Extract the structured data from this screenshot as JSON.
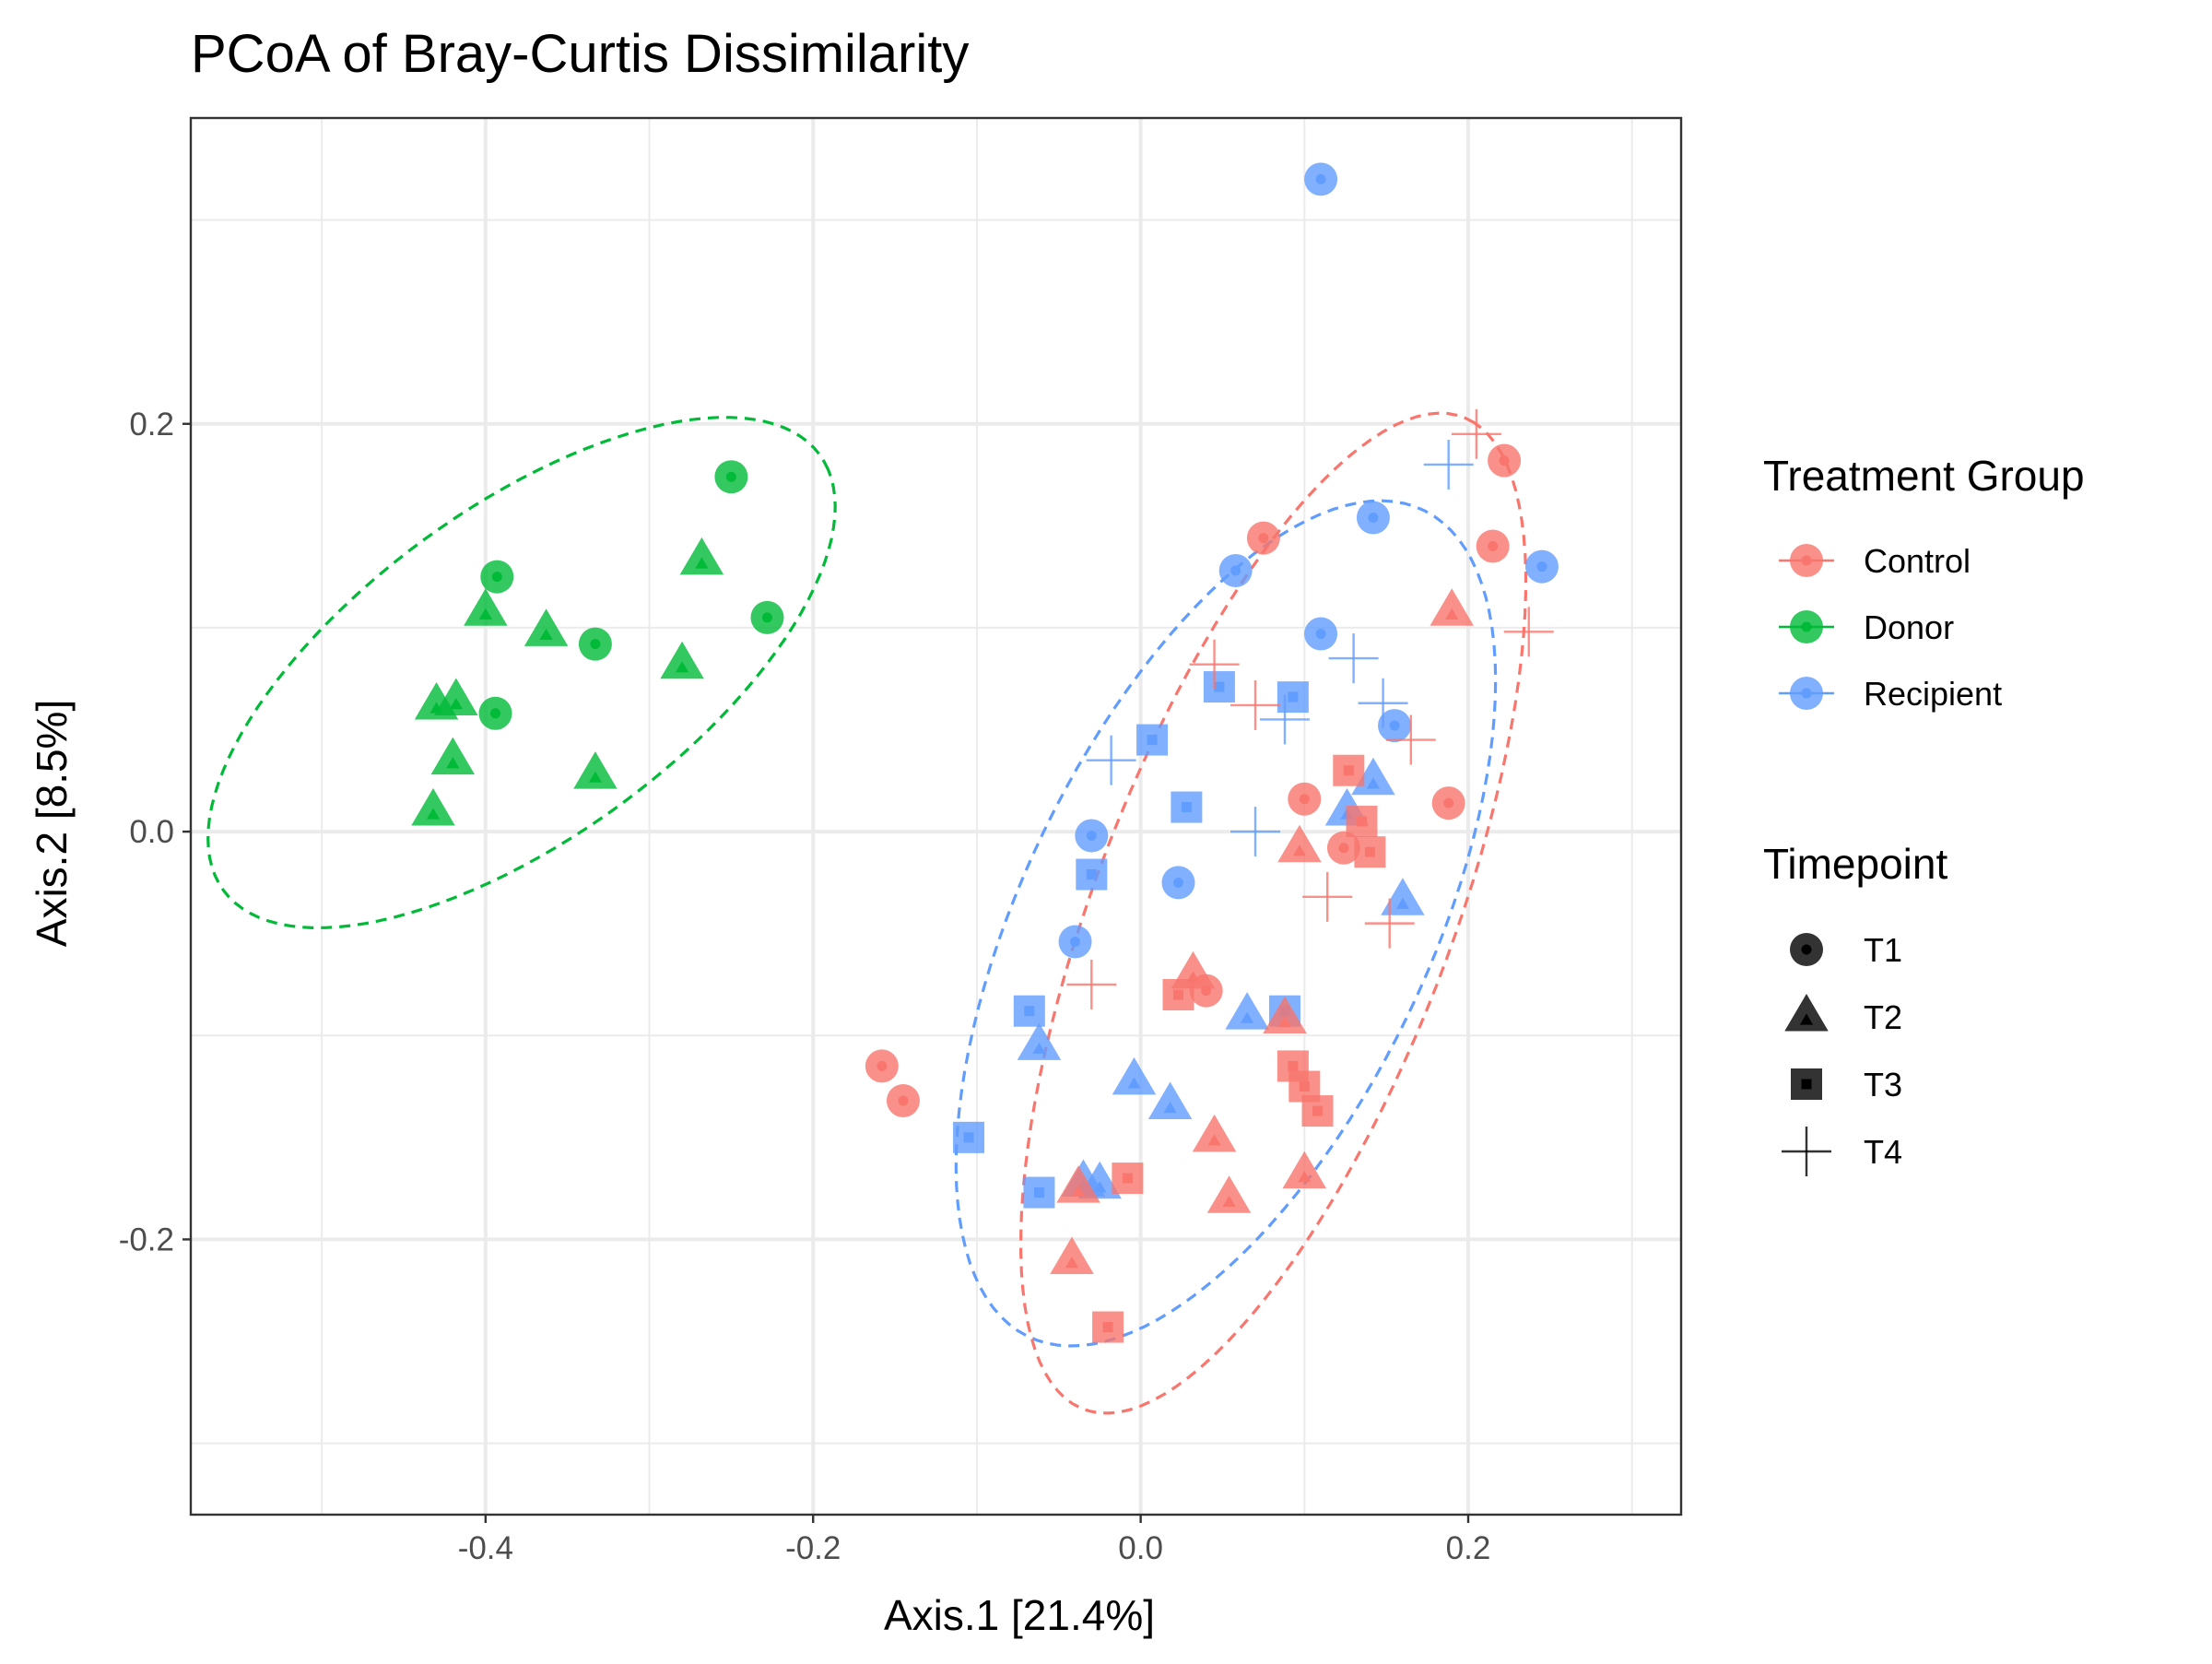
{
  "chart_data": {
    "type": "scatter",
    "title": "PCoA of Bray-Curtis Dissimilarity",
    "xlabel": "Axis.1   [21.4%]",
    "ylabel": "Axis.2   [8.5%]",
    "xlim": [
      -0.58,
      0.33
    ],
    "ylim": [
      -0.335,
      0.35
    ],
    "x_ticks": [
      -0.4,
      -0.2,
      0.0,
      0.2
    ],
    "x_tick_labels": [
      "-0.4",
      "-0.2",
      "0.0",
      "0.2"
    ],
    "y_ticks": [
      -0.2,
      0.0,
      0.2
    ],
    "y_tick_labels": [
      "-0.2",
      "0.0",
      "0.2"
    ],
    "grid": true,
    "legend_position": "right",
    "colors": {
      "Control": "#F8766D",
      "Donor": "#00BA38",
      "Recipient": "#619CFF"
    },
    "legend_color": {
      "title": "Treatment Group",
      "items": [
        {
          "label": "Control",
          "group": "Control"
        },
        {
          "label": "Donor",
          "group": "Donor"
        },
        {
          "label": "Recipient",
          "group": "Recipient"
        }
      ]
    },
    "legend_shape": {
      "title": "Timepoint",
      "items": [
        {
          "label": "T1",
          "shape": "circle"
        },
        {
          "label": "T2",
          "shape": "triangle"
        },
        {
          "label": "T3",
          "shape": "square"
        },
        {
          "label": "T4",
          "shape": "cross"
        }
      ]
    },
    "ellipses": [
      {
        "group": "Donor",
        "center": [
          -0.378,
          0.078
        ],
        "rx": 0.212,
        "ry": 0.086,
        "angle": 28
      },
      {
        "group": "Recipient",
        "center": [
          0.052,
          -0.045
        ],
        "rx": 0.237,
        "ry": 0.118,
        "angle": 56
      },
      {
        "group": "Control",
        "center": [
          0.081,
          -0.04
        ],
        "rx": 0.27,
        "ry": 0.105,
        "angle": 63
      }
    ],
    "points": [
      {
        "group": "Donor",
        "time": "T1",
        "x": -0.25,
        "y": 0.174
      },
      {
        "group": "Donor",
        "time": "T1",
        "x": -0.393,
        "y": 0.125
      },
      {
        "group": "Donor",
        "time": "T1",
        "x": -0.228,
        "y": 0.105
      },
      {
        "group": "Donor",
        "time": "T1",
        "x": -0.333,
        "y": 0.092
      },
      {
        "group": "Donor",
        "time": "T1",
        "x": -0.394,
        "y": 0.058
      },
      {
        "group": "Donor",
        "time": "T2",
        "x": -0.268,
        "y": 0.133
      },
      {
        "group": "Donor",
        "time": "T2",
        "x": -0.4,
        "y": 0.108
      },
      {
        "group": "Donor",
        "time": "T2",
        "x": -0.363,
        "y": 0.098
      },
      {
        "group": "Donor",
        "time": "T2",
        "x": -0.28,
        "y": 0.082
      },
      {
        "group": "Donor",
        "time": "T2",
        "x": -0.43,
        "y": 0.062
      },
      {
        "group": "Donor",
        "time": "T2",
        "x": -0.418,
        "y": 0.064
      },
      {
        "group": "Donor",
        "time": "T2",
        "x": -0.42,
        "y": 0.035
      },
      {
        "group": "Donor",
        "time": "T2",
        "x": -0.333,
        "y": 0.028
      },
      {
        "group": "Donor",
        "time": "T2",
        "x": -0.432,
        "y": 0.01
      },
      {
        "group": "Recipient",
        "time": "T1",
        "x": 0.11,
        "y": 0.32
      },
      {
        "group": "Recipient",
        "time": "T1",
        "x": 0.142,
        "y": 0.154
      },
      {
        "group": "Recipient",
        "time": "T1",
        "x": 0.245,
        "y": 0.13
      },
      {
        "group": "Recipient",
        "time": "T1",
        "x": 0.058,
        "y": 0.128
      },
      {
        "group": "Recipient",
        "time": "T1",
        "x": 0.11,
        "y": 0.097
      },
      {
        "group": "Recipient",
        "time": "T1",
        "x": 0.155,
        "y": 0.052
      },
      {
        "group": "Recipient",
        "time": "T1",
        "x": -0.03,
        "y": -0.002
      },
      {
        "group": "Recipient",
        "time": "T1",
        "x": 0.023,
        "y": -0.025
      },
      {
        "group": "Recipient",
        "time": "T1",
        "x": -0.04,
        "y": -0.054
      },
      {
        "group": "Recipient",
        "time": "T2",
        "x": 0.142,
        "y": 0.025
      },
      {
        "group": "Recipient",
        "time": "T2",
        "x": 0.126,
        "y": 0.01
      },
      {
        "group": "Recipient",
        "time": "T2",
        "x": 0.16,
        "y": -0.034
      },
      {
        "group": "Recipient",
        "time": "T2",
        "x": 0.065,
        "y": -0.09
      },
      {
        "group": "Recipient",
        "time": "T2",
        "x": -0.062,
        "y": -0.105
      },
      {
        "group": "Recipient",
        "time": "T2",
        "x": -0.004,
        "y": -0.122
      },
      {
        "group": "Recipient",
        "time": "T2",
        "x": 0.018,
        "y": -0.134
      },
      {
        "group": "Recipient",
        "time": "T2",
        "x": -0.035,
        "y": -0.172
      },
      {
        "group": "Recipient",
        "time": "T2",
        "x": -0.025,
        "y": -0.173
      },
      {
        "group": "Recipient",
        "time": "T3",
        "x": 0.048,
        "y": 0.071
      },
      {
        "group": "Recipient",
        "time": "T3",
        "x": 0.093,
        "y": 0.066
      },
      {
        "group": "Recipient",
        "time": "T3",
        "x": 0.007,
        "y": 0.045
      },
      {
        "group": "Recipient",
        "time": "T3",
        "x": 0.028,
        "y": 0.012
      },
      {
        "group": "Recipient",
        "time": "T3",
        "x": -0.03,
        "y": -0.021
      },
      {
        "group": "Recipient",
        "time": "T3",
        "x": -0.068,
        "y": -0.088
      },
      {
        "group": "Recipient",
        "time": "T3",
        "x": 0.088,
        "y": -0.088
      },
      {
        "group": "Recipient",
        "time": "T3",
        "x": -0.105,
        "y": -0.15
      },
      {
        "group": "Recipient",
        "time": "T3",
        "x": -0.062,
        "y": -0.177
      },
      {
        "group": "Recipient",
        "time": "T4",
        "x": 0.188,
        "y": 0.18
      },
      {
        "group": "Recipient",
        "time": "T4",
        "x": 0.13,
        "y": 0.085
      },
      {
        "group": "Recipient",
        "time": "T4",
        "x": 0.148,
        "y": 0.063
      },
      {
        "group": "Recipient",
        "time": "T4",
        "x": 0.088,
        "y": 0.055
      },
      {
        "group": "Recipient",
        "time": "T4",
        "x": -0.018,
        "y": 0.035
      },
      {
        "group": "Recipient",
        "time": "T4",
        "x": 0.07,
        "y": 0.0
      },
      {
        "group": "Control",
        "time": "T1",
        "x": 0.222,
        "y": 0.182
      },
      {
        "group": "Control",
        "time": "T1",
        "x": 0.215,
        "y": 0.14
      },
      {
        "group": "Control",
        "time": "T1",
        "x": 0.075,
        "y": 0.144
      },
      {
        "group": "Control",
        "time": "T1",
        "x": 0.1,
        "y": 0.016
      },
      {
        "group": "Control",
        "time": "T1",
        "x": 0.188,
        "y": 0.014
      },
      {
        "group": "Control",
        "time": "T1",
        "x": 0.124,
        "y": -0.008
      },
      {
        "group": "Control",
        "time": "T1",
        "x": 0.04,
        "y": -0.078
      },
      {
        "group": "Control",
        "time": "T1",
        "x": -0.158,
        "y": -0.115
      },
      {
        "group": "Control",
        "time": "T1",
        "x": -0.145,
        "y": -0.132
      },
      {
        "group": "Control",
        "time": "T2",
        "x": 0.19,
        "y": 0.108
      },
      {
        "group": "Control",
        "time": "T2",
        "x": 0.097,
        "y": -0.008
      },
      {
        "group": "Control",
        "time": "T2",
        "x": 0.032,
        "y": -0.07
      },
      {
        "group": "Control",
        "time": "T2",
        "x": 0.088,
        "y": -0.092
      },
      {
        "group": "Control",
        "time": "T2",
        "x": 0.045,
        "y": -0.15
      },
      {
        "group": "Control",
        "time": "T2",
        "x": 0.1,
        "y": -0.168
      },
      {
        "group": "Control",
        "time": "T2",
        "x": 0.054,
        "y": -0.18
      },
      {
        "group": "Control",
        "time": "T2",
        "x": -0.038,
        "y": -0.175
      },
      {
        "group": "Control",
        "time": "T2",
        "x": -0.042,
        "y": -0.21
      },
      {
        "group": "Control",
        "time": "T3",
        "x": 0.127,
        "y": 0.03
      },
      {
        "group": "Control",
        "time": "T3",
        "x": 0.135,
        "y": 0.005
      },
      {
        "group": "Control",
        "time": "T3",
        "x": 0.14,
        "y": -0.01
      },
      {
        "group": "Control",
        "time": "T3",
        "x": 0.023,
        "y": -0.08
      },
      {
        "group": "Control",
        "time": "T3",
        "x": 0.093,
        "y": -0.115
      },
      {
        "group": "Control",
        "time": "T3",
        "x": 0.1,
        "y": -0.125
      },
      {
        "group": "Control",
        "time": "T3",
        "x": 0.108,
        "y": -0.137
      },
      {
        "group": "Control",
        "time": "T3",
        "x": -0.008,
        "y": -0.17
      },
      {
        "group": "Control",
        "time": "T3",
        "x": -0.02,
        "y": -0.243
      },
      {
        "group": "Control",
        "time": "T4",
        "x": 0.205,
        "y": 0.195
      },
      {
        "group": "Control",
        "time": "T4",
        "x": 0.237,
        "y": 0.098
      },
      {
        "group": "Control",
        "time": "T4",
        "x": 0.07,
        "y": 0.062
      },
      {
        "group": "Control",
        "time": "T4",
        "x": 0.165,
        "y": 0.045
      },
      {
        "group": "Control",
        "time": "T4",
        "x": 0.114,
        "y": -0.032
      },
      {
        "group": "Control",
        "time": "T4",
        "x": 0.152,
        "y": -0.045
      },
      {
        "group": "Control",
        "time": "T4",
        "x": -0.03,
        "y": -0.075
      },
      {
        "group": "Control",
        "time": "T4",
        "x": 0.045,
        "y": 0.082
      }
    ]
  }
}
